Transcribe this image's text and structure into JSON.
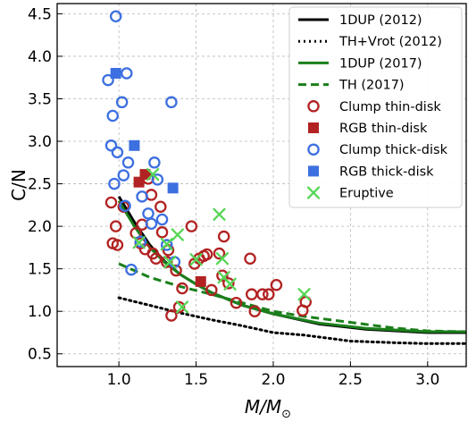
{
  "chart_data": {
    "type": "scatter",
    "xlabel_main": "M/M",
    "xlabel_sub": "⊙",
    "ylabel": "C/N",
    "xlim": [
      0.6,
      3.25
    ],
    "ylim": [
      0.35,
      4.62
    ],
    "x_ticks": [
      "1.0",
      "1.5",
      "2.0",
      "2.5",
      "3.0"
    ],
    "y_ticks": [
      "0.5",
      "1.0",
      "1.5",
      "2.0",
      "2.5",
      "3.0",
      "3.5",
      "4.0",
      "4.5"
    ],
    "grid": true,
    "legend_position": "top-right",
    "colors": {
      "black": "#000000",
      "green": "#1a7f1a",
      "red": "#b22222",
      "blue": "#3c6fe0",
      "eruptive": "#55d655"
    },
    "lines": [
      {
        "name": "1DUP (2012)",
        "style": "solid",
        "color": "black",
        "x": [
          1.0,
          1.1,
          1.2,
          1.3,
          1.4,
          1.5,
          1.6,
          1.8,
          2.0,
          2.3,
          2.6,
          3.0,
          3.25
        ],
        "y": [
          2.35,
          2.05,
          1.78,
          1.58,
          1.43,
          1.32,
          1.22,
          1.07,
          0.97,
          0.85,
          0.79,
          0.75,
          0.75
        ]
      },
      {
        "name": "TH+Vrot (2012)",
        "style": "dotted",
        "color": "black",
        "x": [
          1.0,
          1.2,
          1.4,
          1.6,
          1.8,
          2.0,
          2.2,
          2.5,
          2.8,
          3.0,
          3.25
        ],
        "y": [
          1.16,
          1.07,
          0.98,
          0.9,
          0.83,
          0.75,
          0.72,
          0.65,
          0.63,
          0.62,
          0.62
        ]
      },
      {
        "name": "1DUP (2017)",
        "style": "solid",
        "color": "green",
        "x": [
          1.0,
          1.1,
          1.2,
          1.3,
          1.4,
          1.5,
          1.6,
          1.8,
          2.0,
          2.3,
          2.6,
          3.0,
          3.25
        ],
        "y": [
          2.3,
          2.0,
          1.75,
          1.57,
          1.43,
          1.32,
          1.22,
          1.07,
          0.97,
          0.86,
          0.8,
          0.76,
          0.76
        ]
      },
      {
        "name": "TH (2017)",
        "style": "dashed",
        "color": "green",
        "x": [
          1.0,
          1.2,
          1.4,
          1.6,
          1.8,
          2.0,
          2.2,
          2.5,
          2.8,
          3.0,
          3.25
        ],
        "y": [
          1.56,
          1.4,
          1.29,
          1.2,
          1.1,
          1.0,
          0.94,
          0.87,
          0.8,
          0.77,
          0.76
        ]
      }
    ],
    "series": [
      {
        "name": "Clump thin-disk",
        "marker": "open-circle",
        "color": "red",
        "points": [
          [
            0.95,
            2.28
          ],
          [
            0.96,
            1.8
          ],
          [
            0.98,
            2.0
          ],
          [
            0.99,
            1.78
          ],
          [
            1.03,
            2.23
          ],
          [
            1.11,
            1.92
          ],
          [
            1.14,
            1.8
          ],
          [
            1.15,
            2.02
          ],
          [
            1.17,
            1.73
          ],
          [
            1.19,
            2.56
          ],
          [
            1.21,
            2.37
          ],
          [
            1.22,
            1.68
          ],
          [
            1.24,
            1.62
          ],
          [
            1.27,
            2.23
          ],
          [
            1.28,
            1.93
          ],
          [
            1.31,
            1.58
          ],
          [
            1.32,
            1.72
          ],
          [
            1.34,
            0.95
          ],
          [
            1.37,
            1.48
          ],
          [
            1.39,
            1.05
          ],
          [
            1.41,
            1.27
          ],
          [
            1.47,
            2.0
          ],
          [
            1.49,
            1.56
          ],
          [
            1.52,
            1.62
          ],
          [
            1.55,
            1.65
          ],
          [
            1.57,
            1.67
          ],
          [
            1.6,
            1.25
          ],
          [
            1.65,
            1.68
          ],
          [
            1.67,
            1.42
          ],
          [
            1.68,
            1.88
          ],
          [
            1.71,
            1.33
          ],
          [
            1.76,
            1.1
          ],
          [
            1.85,
            1.62
          ],
          [
            1.86,
            1.2
          ],
          [
            1.88,
            1.0
          ],
          [
            1.93,
            1.2
          ],
          [
            1.97,
            1.2
          ],
          [
            2.02,
            1.31
          ],
          [
            2.19,
            1.01
          ],
          [
            2.21,
            1.11
          ]
        ]
      },
      {
        "name": "RGB thin-disk",
        "marker": "filled-square",
        "color": "red",
        "points": [
          [
            1.13,
            2.52
          ],
          [
            1.17,
            2.61
          ],
          [
            1.53,
            1.35
          ]
        ]
      },
      {
        "name": "Clump thick-disk",
        "marker": "open-circle",
        "color": "blue",
        "points": [
          [
            0.93,
            3.72
          ],
          [
            0.95,
            2.95
          ],
          [
            0.96,
            3.3
          ],
          [
            0.97,
            2.5
          ],
          [
            0.98,
            4.47
          ],
          [
            0.99,
            2.87
          ],
          [
            1.02,
            3.46
          ],
          [
            1.03,
            2.6
          ],
          [
            1.04,
            2.24
          ],
          [
            1.05,
            3.8
          ],
          [
            1.06,
            2.75
          ],
          [
            1.08,
            1.49
          ],
          [
            1.14,
            1.82
          ],
          [
            1.15,
            2.35
          ],
          [
            1.19,
            2.15
          ],
          [
            1.21,
            2.03
          ],
          [
            1.23,
            2.75
          ],
          [
            1.25,
            2.55
          ],
          [
            1.28,
            2.08
          ],
          [
            1.31,
            1.78
          ],
          [
            1.34,
            3.46
          ],
          [
            1.36,
            1.58
          ]
        ]
      },
      {
        "name": "RGB thick-disk",
        "marker": "filled-square",
        "color": "blue",
        "points": [
          [
            0.98,
            3.8
          ],
          [
            1.1,
            2.95
          ],
          [
            1.35,
            2.45
          ]
        ]
      },
      {
        "name": "Eruptive",
        "marker": "x",
        "color": "eruptive",
        "points": [
          [
            1.13,
            1.81
          ],
          [
            1.22,
            2.61
          ],
          [
            1.31,
            1.79
          ],
          [
            1.33,
            1.58
          ],
          [
            1.38,
            1.9
          ],
          [
            1.41,
            1.05
          ],
          [
            1.5,
            1.61
          ],
          [
            1.65,
            2.14
          ],
          [
            1.67,
            1.62
          ],
          [
            1.68,
            1.4
          ],
          [
            1.72,
            1.32
          ],
          [
            2.2,
            1.2
          ]
        ]
      }
    ],
    "legend": [
      {
        "label": "1DUP (2012)",
        "kind": "line",
        "style": "solid",
        "color": "black"
      },
      {
        "label": "TH+Vrot (2012)",
        "kind": "line",
        "style": "dotted",
        "color": "black"
      },
      {
        "label": "1DUP (2017)",
        "kind": "line",
        "style": "solid",
        "color": "green"
      },
      {
        "label": "TH (2017)",
        "kind": "line",
        "style": "dashed",
        "color": "green"
      },
      {
        "label": "Clump thin-disk",
        "kind": "open-circle",
        "color": "red"
      },
      {
        "label": "RGB thin-disk",
        "kind": "filled-square",
        "color": "red"
      },
      {
        "label": "Clump thick-disk",
        "kind": "open-circle",
        "color": "blue"
      },
      {
        "label": "RGB thick-disk",
        "kind": "filled-square",
        "color": "blue"
      },
      {
        "label": "Eruptive",
        "kind": "x",
        "color": "eruptive"
      }
    ]
  }
}
